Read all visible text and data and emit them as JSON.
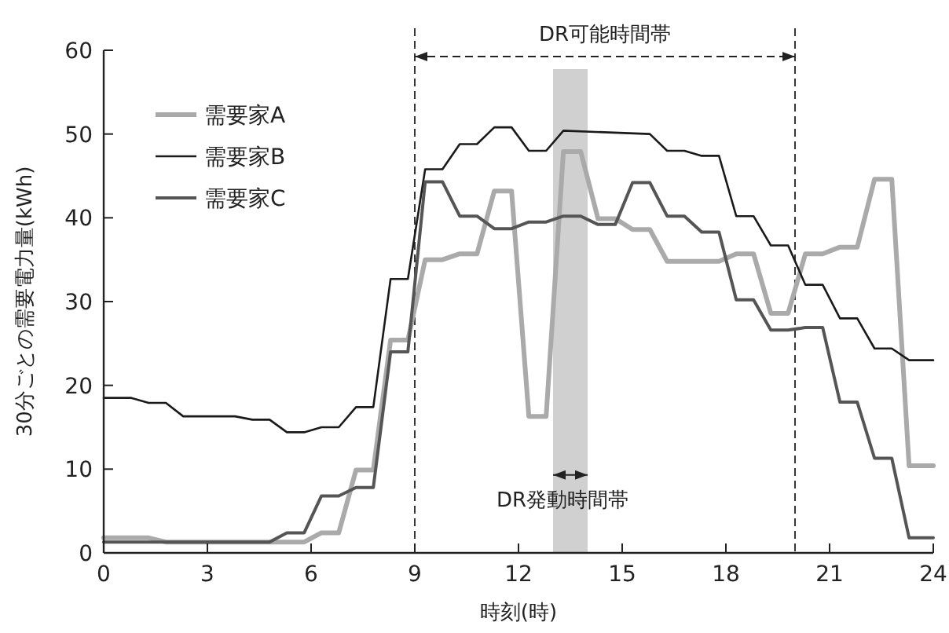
{
  "chart_data": {
    "type": "line",
    "xlabel": "時刻(時)",
    "ylabel": "30分ごとの需要電力量(kWh)",
    "xlim": [
      0,
      24
    ],
    "ylim": [
      0,
      60
    ],
    "xticks": [
      0,
      3,
      6,
      9,
      12,
      15,
      18,
      21,
      24
    ],
    "yticks": [
      0,
      10,
      20,
      30,
      40,
      50,
      60
    ],
    "grid": false,
    "legend": "top left",
    "marker": "none",
    "series": [
      {
        "name": "需要家A",
        "color": "#aaaaaa",
        "x": [
          0,
          0.8,
          1.3,
          1.8,
          2.3,
          5.8,
          6.3,
          6.8,
          7.3,
          7.8,
          8.3,
          8.8,
          9.3,
          9.8,
          10.3,
          10.8,
          11.3,
          11.8,
          12.3,
          12.8,
          13.3,
          13.8,
          14.3,
          14.8,
          15.3,
          15.8,
          16.3,
          16.8,
          17.3,
          17.8,
          18.3,
          18.8,
          19.3,
          19.8,
          20.3,
          20.8,
          21.3,
          21.8,
          22.3,
          22.8,
          23.3,
          24
        ],
        "values": [
          1.8,
          1.8,
          1.8,
          1.3,
          1.3,
          1.3,
          2.4,
          2.4,
          9.9,
          9.9,
          25.4,
          25.4,
          35,
          35,
          35.7,
          35.7,
          43.2,
          43.2,
          16.3,
          16.3,
          47.9,
          47.9,
          39.9,
          39.9,
          38.6,
          38.6,
          34.8,
          34.8,
          34.8,
          34.8,
          35.7,
          35.7,
          28.6,
          28.6,
          35.7,
          35.7,
          36.5,
          36.5,
          44.6,
          44.6,
          10.4,
          10.4
        ]
      },
      {
        "name": "需要家B",
        "color": "#1a1a1a",
        "x": [
          0,
          0.8,
          1.3,
          1.8,
          2.3,
          3.8,
          4.3,
          4.8,
          5.3,
          5.8,
          6.3,
          6.8,
          7.3,
          7.8,
          8.3,
          8.8,
          9.3,
          9.8,
          10.3,
          10.8,
          11.3,
          11.8,
          12.3,
          12.8,
          13.3,
          15.8,
          16.3,
          16.8,
          17.3,
          17.8,
          18.3,
          18.8,
          19.3,
          19.8,
          20.3,
          20.8,
          21.3,
          21.8,
          22.3,
          22.8,
          23.3,
          24
        ],
        "values": [
          18.5,
          18.5,
          17.9,
          17.9,
          16.3,
          16.3,
          15.9,
          15.9,
          14.4,
          14.4,
          15,
          15,
          17.4,
          17.4,
          32.7,
          32.7,
          45.8,
          45.8,
          48.8,
          48.8,
          50.8,
          50.8,
          48,
          48,
          50.4,
          50,
          48,
          48,
          47.4,
          47.4,
          40.2,
          40.2,
          36.7,
          36.7,
          32,
          32,
          28,
          28,
          24.4,
          24.4,
          23,
          23
        ]
      },
      {
        "name": "需要家C",
        "color": "#555555",
        "x": [
          0,
          4.8,
          5.3,
          5.8,
          6.3,
          6.8,
          7.3,
          7.8,
          8.3,
          8.8,
          9.3,
          9.8,
          10.3,
          10.8,
          11.3,
          11.8,
          12.3,
          12.8,
          13.3,
          13.8,
          14.3,
          14.8,
          15.3,
          15.8,
          16.3,
          16.8,
          17.3,
          17.8,
          18.3,
          18.8,
          19.3,
          19.8,
          20.3,
          20.8,
          21.3,
          21.8,
          22.3,
          22.8,
          23.3,
          24
        ],
        "values": [
          1.3,
          1.3,
          2.4,
          2.4,
          6.8,
          6.8,
          7.8,
          7.8,
          24,
          24,
          44.3,
          44.3,
          40.2,
          40.2,
          38.7,
          38.7,
          39.5,
          39.5,
          40.2,
          40.2,
          39.2,
          39.2,
          44.2,
          44.2,
          40.2,
          40.2,
          38.3,
          38.3,
          30.2,
          30.2,
          26.6,
          26.6,
          26.9,
          26.9,
          18,
          18,
          11.3,
          11.3,
          1.8,
          1.8
        ]
      }
    ],
    "ref_lines": [
      {
        "axis": "x",
        "value": 9,
        "line_style": "dashed"
      },
      {
        "axis": "x",
        "value": 20,
        "line_style": "dashed"
      }
    ],
    "annotations": [
      "DR可能時間帯"
    ],
    "bands": [
      {
        "axis": "x",
        "from": 13,
        "to": 14,
        "label": "DR発動時間帯",
        "color": "#d0d0d0"
      }
    ]
  }
}
